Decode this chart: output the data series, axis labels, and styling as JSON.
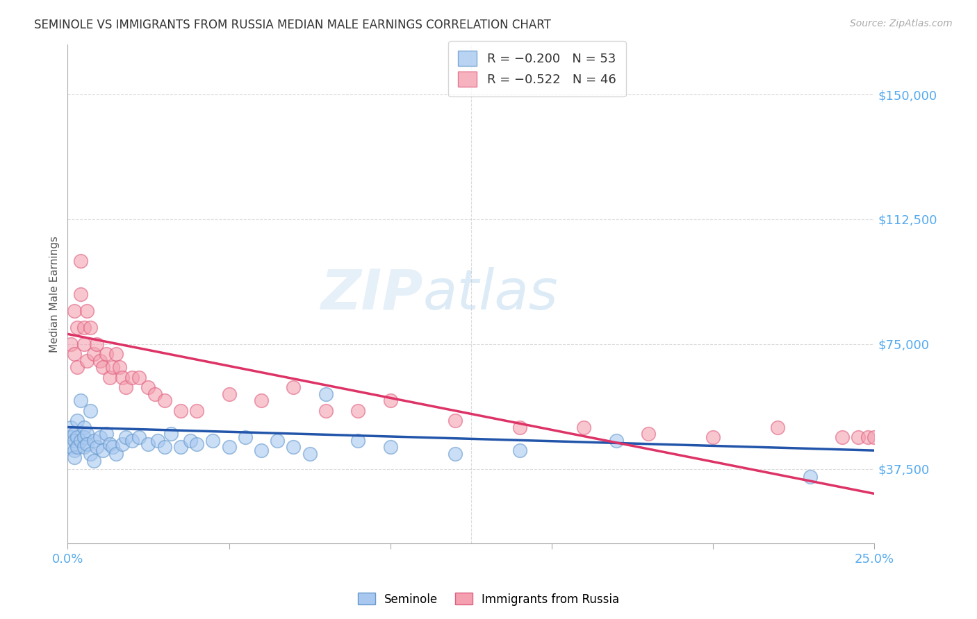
{
  "title": "SEMINOLE VS IMMIGRANTS FROM RUSSIA MEDIAN MALE EARNINGS CORRELATION CHART",
  "source": "Source: ZipAtlas.com",
  "ylabel": "Median Male Earnings",
  "yticks": [
    0,
    37500,
    75000,
    112500,
    150000
  ],
  "ytick_labels": [
    "",
    "$37,500",
    "$75,000",
    "$112,500",
    "$150,000"
  ],
  "xlim": [
    0.0,
    0.25
  ],
  "ylim": [
    15000,
    165000
  ],
  "watermark_zip": "ZIP",
  "watermark_atlas": "atlas",
  "series1_color": "#a8c8f0",
  "series2_color": "#f4a0b0",
  "series1_edge": "#6699cc",
  "series2_edge": "#e06080",
  "trendline1_color": "#2255aa",
  "trendline2_color": "#dd3366",
  "seminole_x": [
    0.001,
    0.001,
    0.001,
    0.002,
    0.002,
    0.002,
    0.002,
    0.003,
    0.003,
    0.003,
    0.004,
    0.004,
    0.005,
    0.005,
    0.005,
    0.006,
    0.006,
    0.007,
    0.007,
    0.008,
    0.008,
    0.009,
    0.01,
    0.011,
    0.012,
    0.013,
    0.014,
    0.015,
    0.017,
    0.018,
    0.02,
    0.022,
    0.025,
    0.028,
    0.03,
    0.032,
    0.035,
    0.038,
    0.04,
    0.045,
    0.05,
    0.055,
    0.06,
    0.065,
    0.07,
    0.075,
    0.08,
    0.09,
    0.1,
    0.12,
    0.14,
    0.17,
    0.23
  ],
  "seminole_y": [
    50000,
    47000,
    44000,
    48000,
    46000,
    43000,
    41000,
    52000,
    47000,
    44000,
    58000,
    46000,
    50000,
    47000,
    44000,
    48000,
    45000,
    55000,
    42000,
    46000,
    40000,
    44000,
    47000,
    43000,
    48000,
    45000,
    44000,
    42000,
    45000,
    47000,
    46000,
    47000,
    45000,
    46000,
    44000,
    48000,
    44000,
    46000,
    45000,
    46000,
    44000,
    47000,
    43000,
    46000,
    44000,
    42000,
    60000,
    46000,
    44000,
    42000,
    43000,
    46000,
    35000
  ],
  "russia_x": [
    0.001,
    0.002,
    0.002,
    0.003,
    0.003,
    0.004,
    0.004,
    0.005,
    0.005,
    0.006,
    0.006,
    0.007,
    0.008,
    0.009,
    0.01,
    0.011,
    0.012,
    0.013,
    0.014,
    0.015,
    0.016,
    0.017,
    0.018,
    0.02,
    0.022,
    0.025,
    0.027,
    0.03,
    0.035,
    0.04,
    0.05,
    0.06,
    0.07,
    0.08,
    0.09,
    0.1,
    0.12,
    0.14,
    0.16,
    0.18,
    0.2,
    0.22,
    0.24,
    0.245,
    0.248,
    0.25
  ],
  "russia_y": [
    75000,
    85000,
    72000,
    80000,
    68000,
    90000,
    100000,
    80000,
    75000,
    85000,
    70000,
    80000,
    72000,
    75000,
    70000,
    68000,
    72000,
    65000,
    68000,
    72000,
    68000,
    65000,
    62000,
    65000,
    65000,
    62000,
    60000,
    58000,
    55000,
    55000,
    60000,
    58000,
    62000,
    55000,
    55000,
    58000,
    52000,
    50000,
    50000,
    48000,
    47000,
    50000,
    47000,
    47000,
    47000,
    47000
  ],
  "trendline1_x": [
    0.0,
    0.25
  ],
  "trendline1_y": [
    50000,
    43000
  ],
  "trendline2_x": [
    0.0,
    0.25
  ],
  "trendline2_y": [
    78000,
    30000
  ],
  "background_color": "#ffffff",
  "grid_color": "#cccccc",
  "title_color": "#333333",
  "axis_label_color": "#555555",
  "ytick_color": "#55aaee",
  "xtick_color": "#55aaee"
}
